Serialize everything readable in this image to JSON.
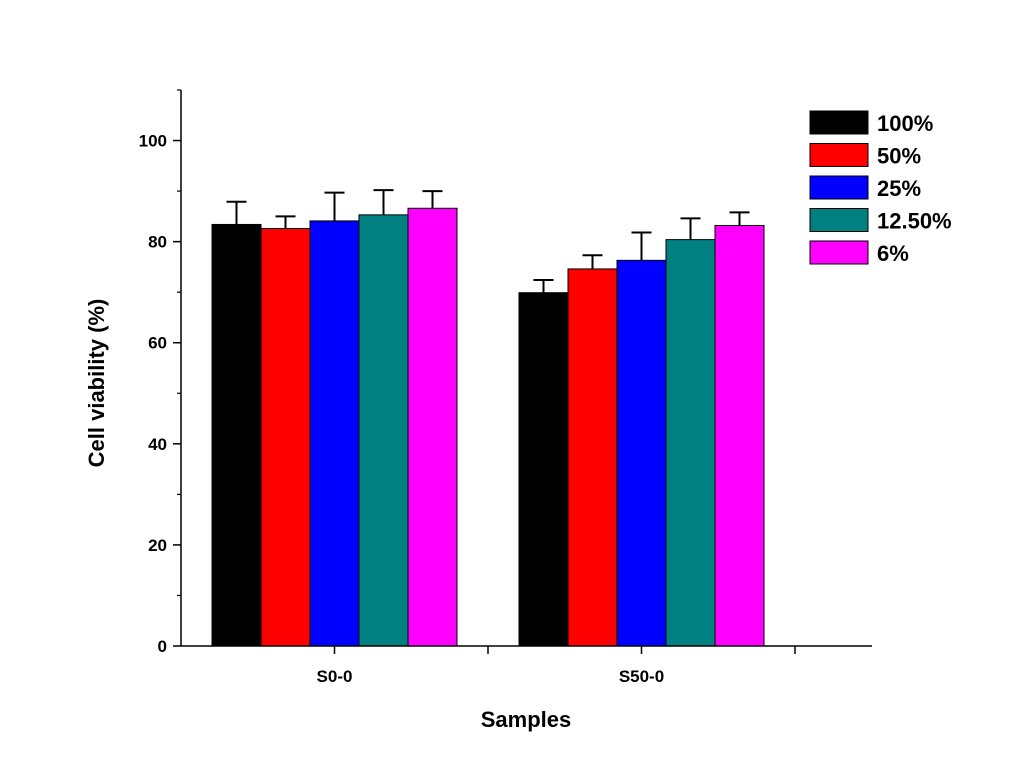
{
  "chart_data": {
    "type": "bar",
    "xlabel": "Samples",
    "ylabel": "Cell viability (%)",
    "ylim": [
      0,
      110
    ],
    "yticks": [
      0,
      20,
      40,
      60,
      80,
      100
    ],
    "grid": false,
    "legend_position": "top-right",
    "categories": [
      "S0-0",
      "S50-0"
    ],
    "series": [
      {
        "name": "100%",
        "color": "#000000",
        "values": [
          83.4,
          69.9
        ],
        "errors": [
          4.5,
          2.5
        ]
      },
      {
        "name": "50%",
        "color": "#ff0000",
        "values": [
          82.6,
          74.6
        ],
        "errors": [
          2.4,
          2.7
        ]
      },
      {
        "name": "25%",
        "color": "#0000ff",
        "values": [
          84.1,
          76.3
        ],
        "errors": [
          5.6,
          5.5
        ]
      },
      {
        "name": "12.50%",
        "color": "#008080",
        "values": [
          85.3,
          80.4
        ],
        "errors": [
          4.9,
          4.2
        ]
      },
      {
        "name": "6%",
        "color": "#ff00ff",
        "values": [
          86.6,
          83.2
        ],
        "errors": [
          3.4,
          2.6
        ]
      }
    ]
  }
}
